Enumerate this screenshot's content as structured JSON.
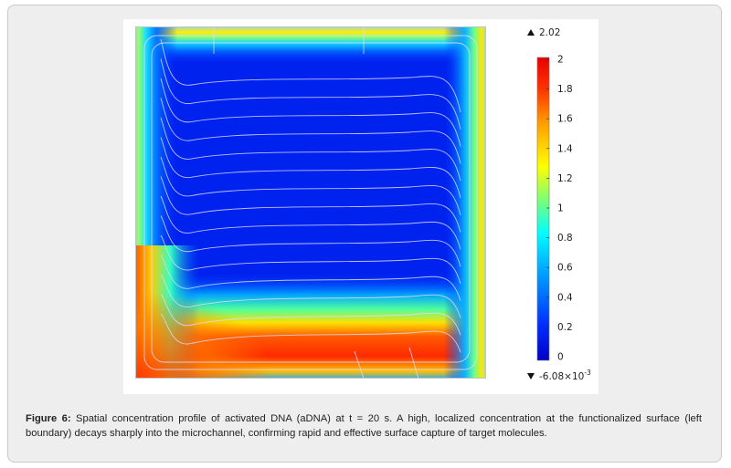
{
  "figure": {
    "caption_label": "Figure 6:",
    "caption_text": " Spatial concentration profile of activated DNA (aDNA) at t = 20 s. A high, localized concentration at the functionalized surface (left boundary) decays sharply into the microchannel, confirming rapid and effective surface capture of target molecules."
  },
  "chart_data": {
    "type": "heatmap",
    "title": "",
    "colorbar": {
      "max_label": "2.02",
      "min_label": "-6.08×10",
      "min_exponent": "-3",
      "max_marker": "triangle-up-icon",
      "min_marker": "triangle-down-icon",
      "range": [
        0,
        2
      ],
      "ticks": [
        "2",
        "1.8",
        "1.6",
        "1.4",
        "1.2",
        "1",
        "0.8",
        "0.6",
        "0.4",
        "0.2",
        "0"
      ],
      "tick_values": [
        2,
        1.8,
        1.6,
        1.4,
        1.2,
        1,
        0.8,
        0.6,
        0.4,
        0.2,
        0
      ],
      "colormap": [
        "#00008f",
        "#0000ff",
        "#007fff",
        "#00ffff",
        "#7fff7f",
        "#ffff00",
        "#ff7f00",
        "#ff0000",
        "#800000"
      ]
    },
    "field": {
      "interior_value": 0.05,
      "boundary_peak": 2.02,
      "high_region": "bottom-left",
      "contour_color": "#d9d9ff"
    }
  }
}
